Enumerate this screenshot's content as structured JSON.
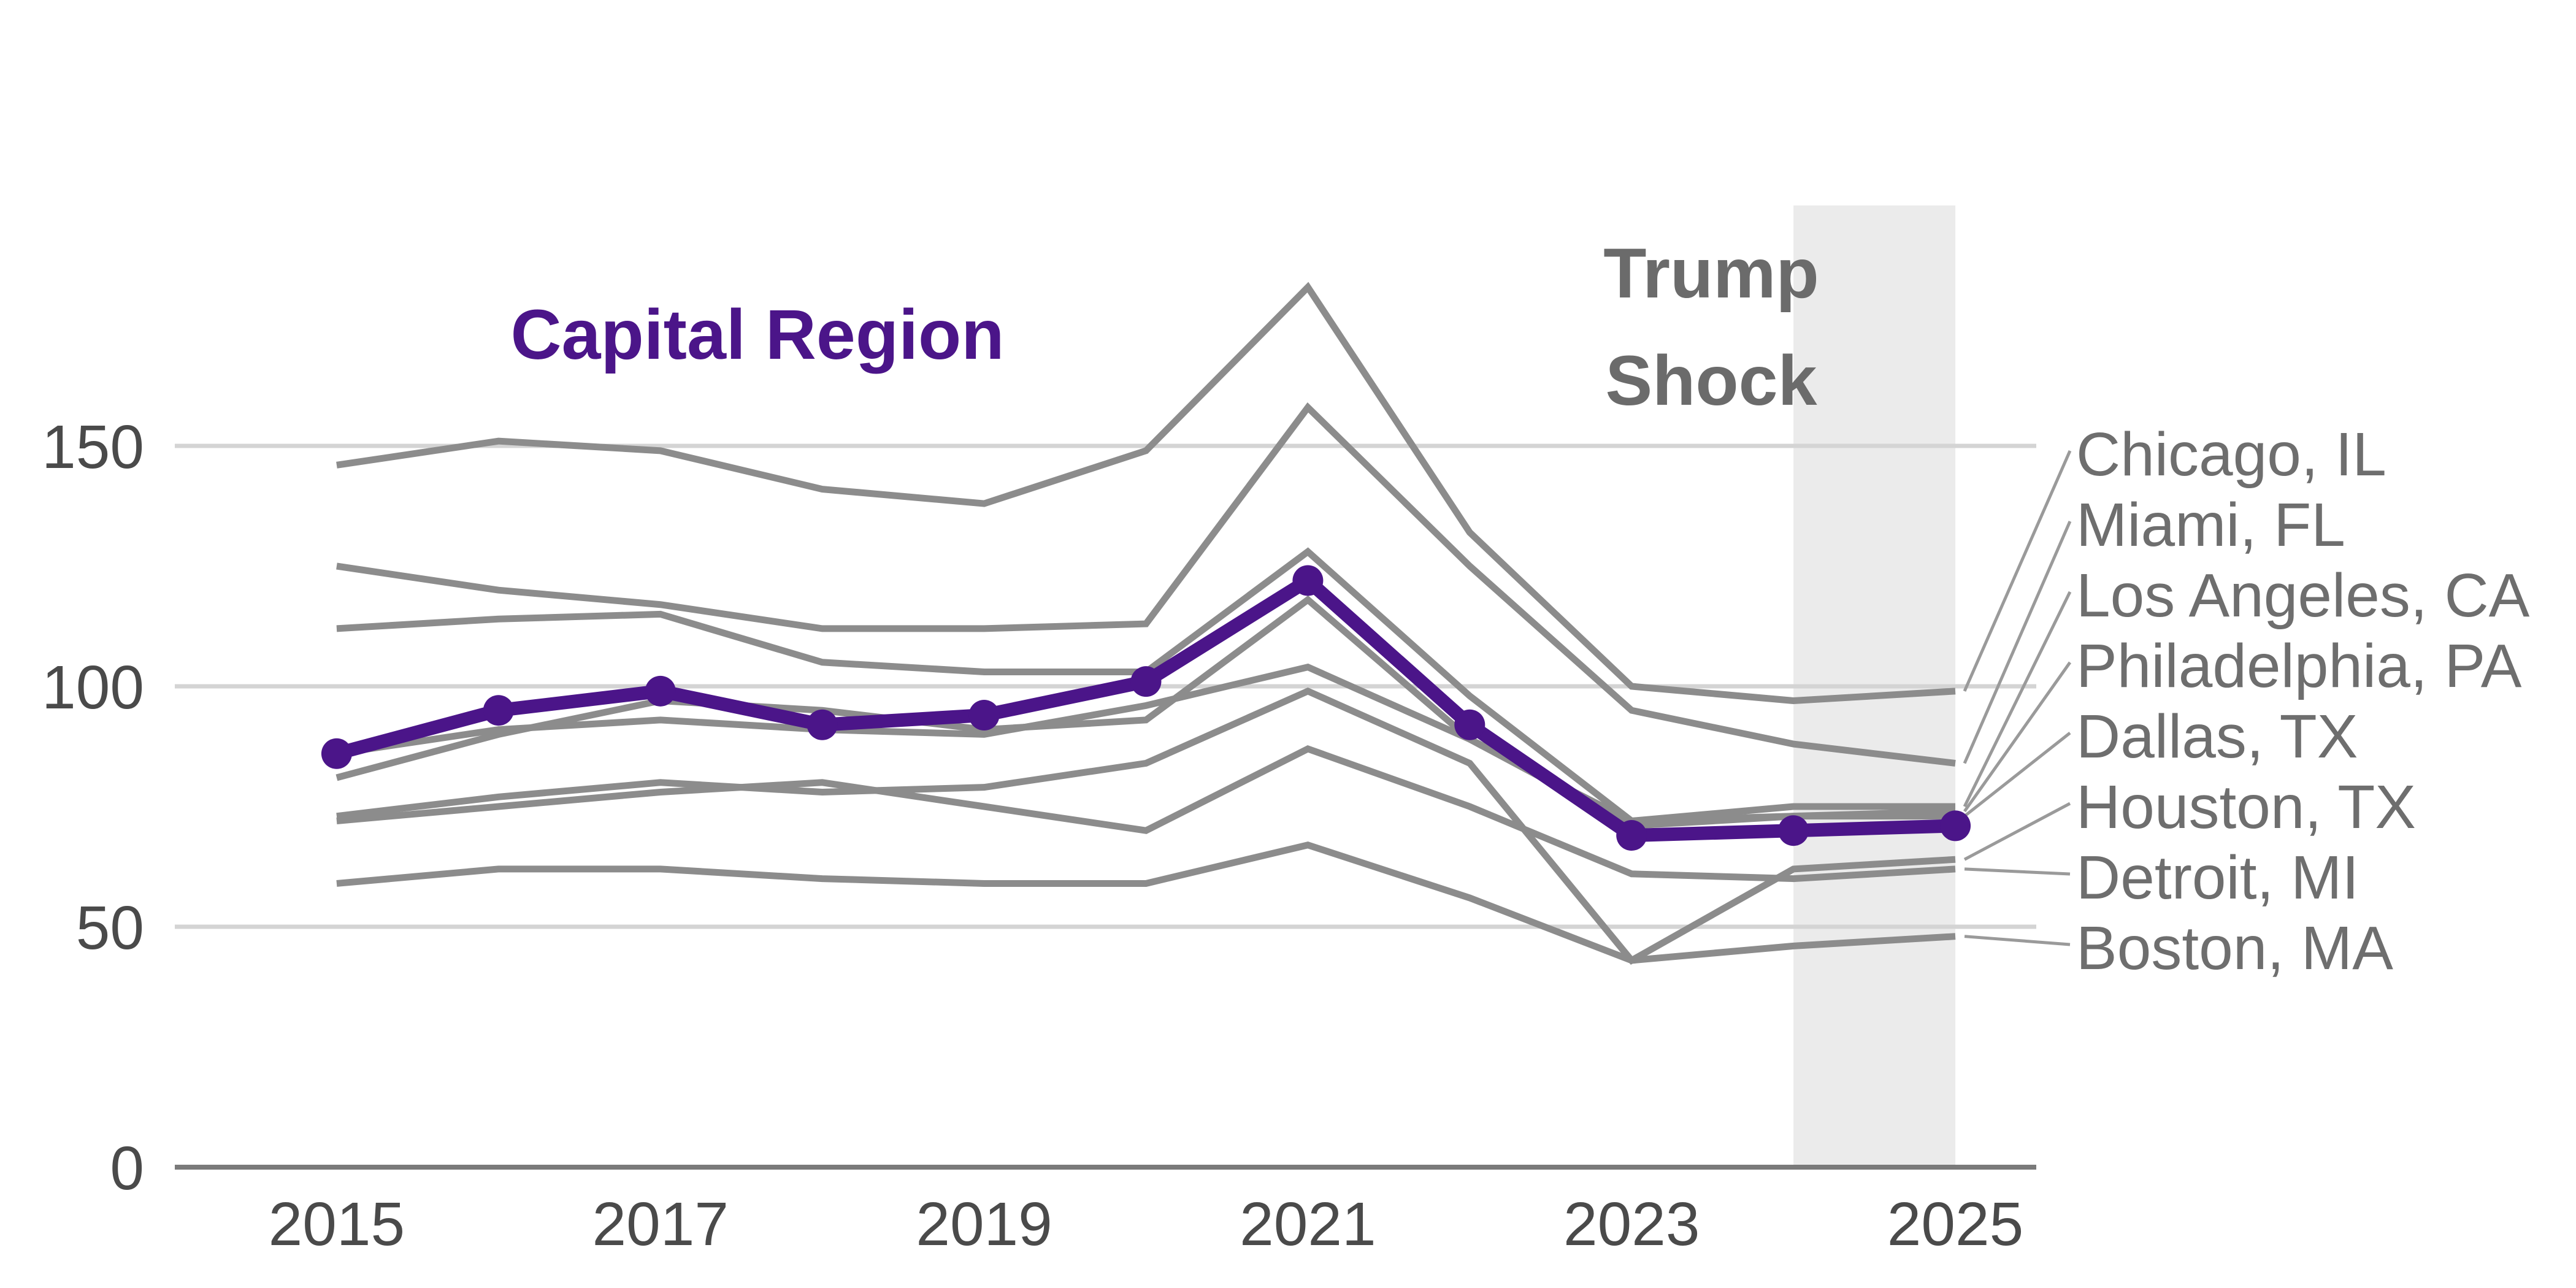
{
  "chart_data": {
    "type": "line",
    "title": "",
    "xlabel": "",
    "ylabel": "",
    "x": [
      2015,
      2016,
      2017,
      2018,
      2019,
      2020,
      2021,
      2022,
      2023,
      2024,
      2025
    ],
    "x_ticks": [
      "2015",
      "2017",
      "2019",
      "2021",
      "2023",
      "2025"
    ],
    "y_ticks": [
      "0",
      "50",
      "100",
      "150"
    ],
    "xlim": [
      2014,
      2025.5
    ],
    "ylim": [
      0,
      200
    ],
    "grid": "horizontal",
    "highlight": {
      "name": "Capital Region",
      "color": "#4b1589",
      "values": [
        86,
        95,
        99,
        92,
        94,
        101,
        122,
        92,
        69,
        70,
        71
      ]
    },
    "series": [
      {
        "name": "Chicago, IL",
        "values": [
          146,
          151,
          149,
          141,
          138,
          149,
          183,
          132,
          100,
          97,
          99
        ]
      },
      {
        "name": "Miami, FL",
        "values": [
          125,
          120,
          117,
          112,
          112,
          113,
          158,
          125,
          95,
          88,
          84
        ]
      },
      {
        "name": "Los Angeles, CA",
        "values": [
          112,
          114,
          115,
          105,
          103,
          103,
          128,
          98,
          72,
          75,
          75
        ]
      },
      {
        "name": "Philadelphia, PA",
        "values": [
          81,
          90,
          97,
          95,
          91,
          93,
          118,
          89,
          71,
          73,
          74
        ]
      },
      {
        "name": "Dallas, TX",
        "values": [
          86,
          91,
          93,
          91,
          90,
          96,
          104,
          89,
          72,
          73,
          73
        ]
      },
      {
        "name": "Houston, TX",
        "values": [
          73,
          77,
          80,
          78,
          79,
          84,
          99,
          84,
          43,
          62,
          64
        ]
      },
      {
        "name": "Detroit, MI",
        "values": [
          72,
          75,
          78,
          80,
          75,
          70,
          87,
          75,
          61,
          60,
          62
        ]
      },
      {
        "name": "Boston, MA",
        "values": [
          59,
          62,
          62,
          60,
          59,
          59,
          67,
          56,
          43,
          46,
          48
        ]
      }
    ],
    "shaded_region": {
      "x": [
        2024,
        2025
      ],
      "label_lines": [
        "Trump",
        "Shock"
      ],
      "color": "#ebebeb"
    },
    "colors": {
      "context_lines": "#8c8c8c",
      "grid": "#d4d4d4",
      "axis": "#7a7a7a"
    }
  }
}
